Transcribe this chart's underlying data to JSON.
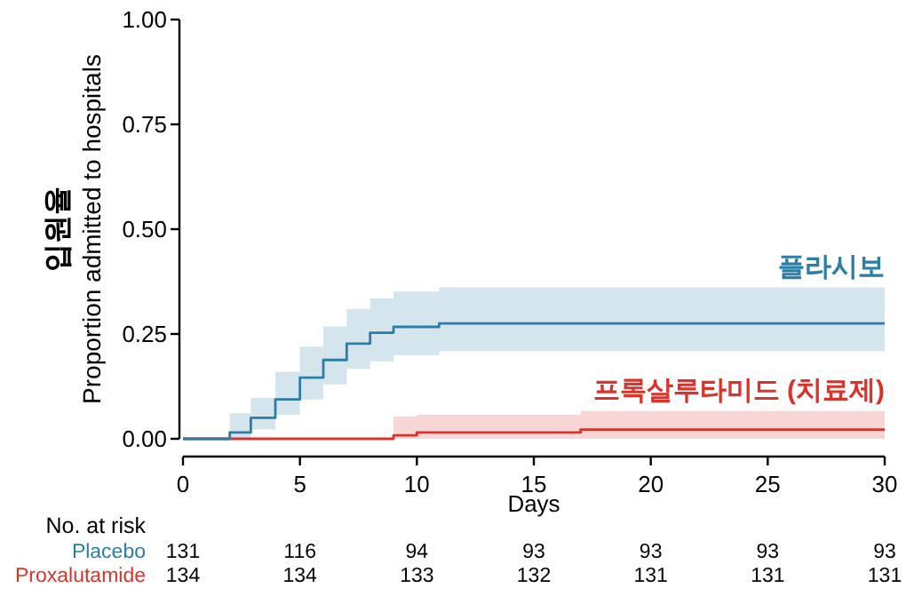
{
  "chart_data": {
    "type": "step",
    "ylabel": "입원율\nProportion admitted to hospitals",
    "xlabel": "Days",
    "xlim": [
      0,
      30
    ],
    "xticks": [
      0,
      5,
      10,
      15,
      20,
      25,
      30
    ],
    "ylim": [
      0,
      1
    ],
    "yticks": [
      {
        "value": 0,
        "label": "0.00"
      },
      {
        "value": 0.25,
        "label": "0.25"
      },
      {
        "value": 0.5,
        "label": "0.50"
      },
      {
        "value": 0.75,
        "label": "0.75"
      },
      {
        "value": 1,
        "label": "1.00"
      }
    ],
    "grid": false,
    "legend": false,
    "series": [
      {
        "name": "플라시보",
        "color": "#2b7fa6",
        "x": [
          0,
          2,
          2.9,
          3.95,
          5,
          6,
          7,
          8,
          9,
          10.95,
          30
        ],
        "values": [
          0,
          0.015,
          0.05,
          0.094,
          0.146,
          0.188,
          0.227,
          0.253,
          0.267,
          0.275,
          0.275
        ],
        "lower": [
          null,
          0,
          0.022,
          0.057,
          0.094,
          0.13,
          0.167,
          0.185,
          0.199,
          0.209,
          0.209
        ],
        "upper": [
          null,
          0.061,
          0.098,
          0.16,
          0.22,
          0.268,
          0.31,
          0.335,
          0.351,
          0.361,
          0.361
        ]
      },
      {
        "name": "프록살루타미드 (치료제)",
        "color": "#d9342b",
        "x": [
          0,
          9,
          10,
          17,
          30
        ],
        "values": [
          0,
          0.008,
          0.015,
          0.022,
          0.022
        ],
        "lower": [
          null,
          0,
          0,
          0,
          0
        ],
        "upper": [
          null,
          0.053,
          0.057,
          0.066,
          0.066
        ]
      }
    ],
    "annotations": [
      "No. at risk",
      "Placebo",
      "131",
      "116",
      "94",
      "93",
      "93",
      "93",
      "93",
      "Proxalutamide",
      "134",
      "134",
      "133",
      "132",
      "131",
      "131",
      "131"
    ]
  }
}
